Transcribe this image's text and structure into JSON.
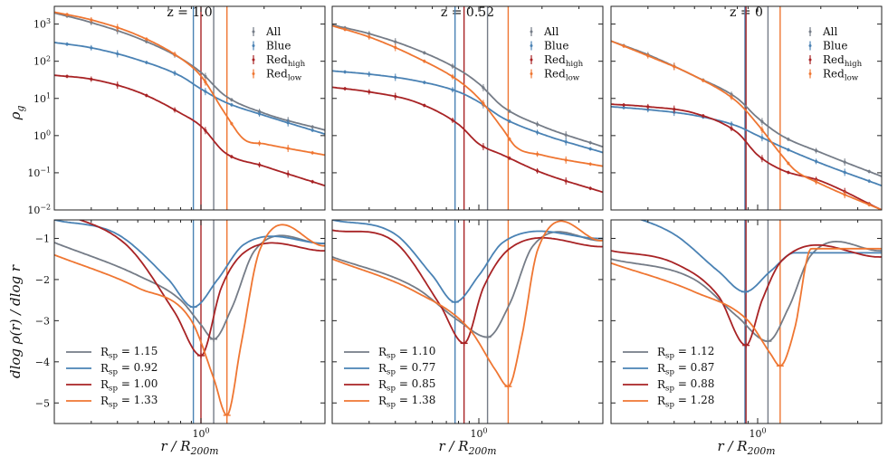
{
  "colors": {
    "All": "#757c87",
    "Blue": "#4a82b4",
    "Red_high": "#a82325",
    "Red_low": "#ef7632"
  },
  "chart_data": {
    "type": "line",
    "layout": "2x3 panels (top: density profiles; bottom: logarithmic slope)",
    "xlabel_base": "r / R",
    "xlabel_sub": "200m",
    "xscale": "log",
    "xlim": [
      0.2,
      3.9
    ],
    "top_ylabel": "ρ",
    "top_ylabel_sub": "g",
    "top_yscale": "log",
    "top_ylim": [
      0.01,
      3000
    ],
    "top_yticks": [
      {
        "base": "10",
        "exp": "3",
        "value": 1000
      },
      {
        "base": "10",
        "exp": "2",
        "value": 100
      },
      {
        "base": "10",
        "exp": "1",
        "value": 10
      },
      {
        "base": "10",
        "exp": "0",
        "value": 1
      },
      {
        "base": "10",
        "exp": "−1",
        "value": 0.1
      },
      {
        "base": "10",
        "exp": "−2",
        "value": 0.01
      }
    ],
    "bottom_ylabel": "dlog ρ(r) / dlog r",
    "bottom_ylim": [
      -5.5,
      -0.55
    ],
    "bottom_yticks": [
      {
        "label": "−1",
        "value": -1
      },
      {
        "label": "−2",
        "value": -2
      },
      {
        "label": "−3",
        "value": -3
      },
      {
        "label": "−4",
        "value": -4
      },
      {
        "label": "−5",
        "value": -5
      }
    ],
    "xticks": [
      {
        "base": "10",
        "exp": "0",
        "value": 1
      }
    ],
    "legend_top_placement": "top-right",
    "legend_bottom_placement": "bottom-left",
    "series_names": [
      {
        "key": "All",
        "base": "All",
        "sub": ""
      },
      {
        "key": "Blue",
        "base": "Blue",
        "sub": ""
      },
      {
        "key": "Red_high",
        "base": "Red",
        "sub": "high"
      },
      {
        "key": "Red_low",
        "base": "Red",
        "sub": "low"
      }
    ],
    "rsp_label_base": "R",
    "rsp_label_sub": "sp",
    "panels": [
      {
        "title": "z = 1.0",
        "series": [
          {
            "key": "All",
            "rsp": "1.15",
            "rho_x": [
              0.2,
              0.3,
              0.5,
              0.8,
              1.0,
              1.3,
              2.0,
              3.9
            ],
            "rho_y": [
              2000,
              1100,
              420,
              120,
              50,
              12,
              4,
              1.4
            ],
            "slope_x": [
              0.2,
              0.5,
              0.8,
              1.0,
              1.15,
              1.4,
              1.8,
              3.9
            ],
            "slope_y": [
              -1.1,
              -1.9,
              -2.5,
              -3.1,
              -3.45,
              -2.7,
              -1.3,
              -1.12
            ]
          },
          {
            "key": "Blue",
            "rsp": "0.92",
            "rho_x": [
              0.2,
              0.3,
              0.5,
              0.8,
              1.0,
              1.3,
              2.0,
              3.9
            ],
            "rho_y": [
              320,
              230,
              110,
              40,
              18,
              8,
              3.5,
              1.1
            ],
            "slope_x": [
              0.2,
              0.4,
              0.7,
              0.92,
              1.2,
              1.6,
              3.9
            ],
            "slope_y": [
              -0.55,
              -0.9,
              -2.0,
              -2.67,
              -2.0,
              -1.15,
              -1.12
            ]
          },
          {
            "key": "Red_high",
            "rsp": "1.00",
            "rho_x": [
              0.2,
              0.3,
              0.5,
              0.8,
              1.0,
              1.3,
              2.0,
              3.9
            ],
            "rho_y": [
              42,
              33,
              15,
              4,
              1.8,
              0.35,
              0.15,
              0.045
            ],
            "slope_x": [
              0.2,
              0.45,
              0.75,
              1.0,
              1.25,
              1.6,
              3.9
            ],
            "slope_y": [
              -0.3,
              -1.2,
              -2.8,
              -3.85,
              -2.2,
              -1.35,
              -1.3
            ]
          },
          {
            "key": "Red_low",
            "rsp": "1.33",
            "rho_x": [
              0.2,
              0.3,
              0.5,
              0.8,
              1.0,
              1.3,
              1.6,
              2.0,
              3.9
            ],
            "rho_y": [
              2100,
              1300,
              500,
              120,
              40,
              4,
              0.8,
              0.6,
              0.3
            ],
            "slope_x": [
              0.2,
              0.5,
              0.9,
              1.15,
              1.33,
              1.55,
              1.9,
              3.9
            ],
            "slope_y": [
              -1.4,
              -2.2,
              -3.0,
              -4.4,
              -5.3,
              -3.6,
              -1.3,
              -1.18
            ]
          }
        ]
      },
      {
        "title": "z = 0.52",
        "series": [
          {
            "key": "All",
            "rsp": "1.10",
            "rho_x": [
              0.2,
              0.3,
              0.5,
              0.8,
              1.0,
              1.3,
              2.0,
              3.9
            ],
            "rho_y": [
              950,
              550,
              210,
              60,
              25,
              6,
              1.8,
              0.5
            ],
            "slope_x": [
              0.2,
              0.5,
              0.8,
              1.1,
              1.4,
              1.8,
              3.9
            ],
            "slope_y": [
              -1.45,
              -2.2,
              -3.0,
              -3.4,
              -2.6,
              -1.2,
              -1.05
            ]
          },
          {
            "key": "Blue",
            "rsp": "0.77",
            "rho_x": [
              0.2,
              0.3,
              0.5,
              0.8,
              1.0,
              1.3,
              2.0,
              3.9
            ],
            "rho_y": [
              55,
              45,
              30,
              15,
              8,
              3,
              1.1,
              0.35
            ],
            "slope_x": [
              0.2,
              0.4,
              0.6,
              0.77,
              1.0,
              1.3,
              3.9
            ],
            "slope_y": [
              -0.55,
              -0.9,
              -1.9,
              -2.55,
              -1.9,
              -1.1,
              -1.0
            ]
          },
          {
            "key": "Red_high",
            "rsp": "0.85",
            "rho_x": [
              0.2,
              0.3,
              0.5,
              0.8,
              1.0,
              1.3,
              2.0,
              3.9
            ],
            "rho_y": [
              20,
              15,
              8,
              2,
              0.6,
              0.3,
              0.1,
              0.03
            ],
            "slope_x": [
              0.2,
              0.4,
              0.65,
              0.85,
              1.05,
              1.4,
              3.9
            ],
            "slope_y": [
              -0.8,
              -1.1,
              -2.6,
              -3.55,
              -2.2,
              -1.25,
              -1.2
            ]
          },
          {
            "key": "Red_low",
            "rsp": "1.38",
            "rho_x": [
              0.2,
              0.3,
              0.5,
              0.8,
              1.0,
              1.3,
              1.5,
              2.0,
              3.9
            ],
            "rho_y": [
              900,
              450,
              130,
              30,
              10,
              1.5,
              0.5,
              0.3,
              0.15
            ],
            "slope_x": [
              0.2,
              0.5,
              0.9,
              1.2,
              1.38,
              1.6,
              1.9,
              3.9
            ],
            "slope_y": [
              -1.5,
              -2.3,
              -3.2,
              -4.2,
              -4.6,
              -3.4,
              -1.3,
              -1.05
            ]
          }
        ]
      },
      {
        "title": "z = 0",
        "series": [
          {
            "key": "All",
            "rsp": "1.12",
            "rho_x": [
              0.2,
              0.3,
              0.5,
              0.8,
              1.0,
              1.3,
              2.0,
              3.9
            ],
            "rho_y": [
              350,
              150,
              40,
              10,
              3,
              1,
              0.35,
              0.08
            ],
            "slope_x": [
              0.2,
              0.5,
              0.8,
              1.12,
              1.4,
              1.8,
              3.9
            ],
            "slope_y": [
              -1.5,
              -2.0,
              -2.9,
              -3.5,
              -2.7,
              -1.4,
              -1.3
            ]
          },
          {
            "key": "Blue",
            "rsp": "0.87",
            "rho_x": [
              0.2,
              0.3,
              0.5,
              0.8,
              1.0,
              1.3,
              2.0,
              3.9
            ],
            "rho_y": [
              6,
              5,
              3.5,
              1.8,
              1,
              0.5,
              0.18,
              0.045
            ],
            "slope_x": [
              0.2,
              0.4,
              0.65,
              0.87,
              1.15,
              1.5,
              3.9
            ],
            "slope_y": [
              -0.3,
              -0.9,
              -1.8,
              -2.3,
              -1.8,
              -1.35,
              -1.35
            ]
          },
          {
            "key": "Red_high",
            "rsp": "0.88",
            "rho_x": [
              0.2,
              0.3,
              0.5,
              0.8,
              1.0,
              1.3,
              2.0,
              3.9
            ],
            "rho_y": [
              7,
              6,
              4,
              1.2,
              0.3,
              0.12,
              0.06,
              0.01
            ],
            "slope_x": [
              0.2,
              0.4,
              0.65,
              0.88,
              1.05,
              1.3,
              3.9
            ],
            "slope_y": [
              -1.3,
              -1.6,
              -2.4,
              -3.6,
              -2.5,
              -1.55,
              -1.45
            ]
          },
          {
            "key": "Red_low",
            "rsp": "1.28",
            "rho_x": [
              0.2,
              0.3,
              0.5,
              0.8,
              1.0,
              1.3,
              1.5,
              2.0,
              3.9
            ],
            "rho_y": [
              350,
              140,
              40,
              8,
              2,
              0.3,
              0.12,
              0.05,
              0.01
            ],
            "slope_x": [
              0.2,
              0.5,
              0.9,
              1.15,
              1.28,
              1.5,
              1.8,
              3.9
            ],
            "slope_y": [
              -1.6,
              -2.3,
              -3.0,
              -3.8,
              -4.1,
              -3.2,
              -1.25,
              -1.25
            ]
          }
        ]
      }
    ]
  }
}
